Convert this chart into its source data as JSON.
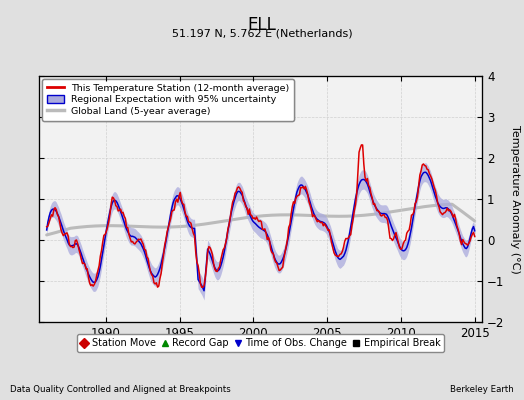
{
  "title": "ELL",
  "subtitle": "51.197 N, 5.762 E (Netherlands)",
  "ylabel": "Temperature Anomaly (°C)",
  "xlabel_left": "Data Quality Controlled and Aligned at Breakpoints",
  "xlabel_right": "Berkeley Earth",
  "ylim": [
    -2,
    4
  ],
  "xlim": [
    1985.5,
    2015.5
  ],
  "xticks": [
    1990,
    1995,
    2000,
    2005,
    2010,
    2015
  ],
  "yticks": [
    -2,
    -1,
    0,
    1,
    2,
    3,
    4
  ],
  "bg_color": "#e0e0e0",
  "plot_bg_color": "#f2f2f2",
  "legend_entries": [
    "This Temperature Station (12-month average)",
    "Regional Expectation with 95% uncertainty",
    "Global Land (5-year average)"
  ],
  "legend_marker_entries": [
    {
      "label": "Station Move",
      "color": "#cc0000",
      "marker": "D"
    },
    {
      "label": "Record Gap",
      "color": "#008800",
      "marker": "^"
    },
    {
      "label": "Time of Obs. Change",
      "color": "#0000cc",
      "marker": "v"
    },
    {
      "label": "Empirical Break",
      "color": "#000000",
      "marker": "s"
    }
  ],
  "station_line_color": "#dd0000",
  "regional_line_color": "#0000cc",
  "regional_fill_color": "#aaaadd",
  "global_line_color": "#bbbbbb",
  "seed": 42
}
